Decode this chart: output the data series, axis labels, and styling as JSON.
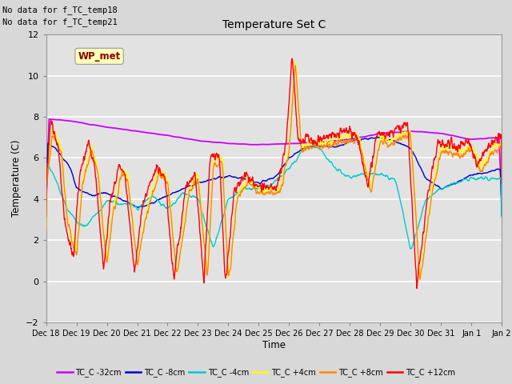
{
  "title": "Temperature Set C",
  "xlabel": "Time",
  "ylabel": "Temperature (C)",
  "ylim": [
    -2,
    12
  ],
  "yticks": [
    -2,
    0,
    2,
    4,
    6,
    8,
    10,
    12
  ],
  "no_data_text": [
    "No data for f_TC_temp18",
    "No data for f_TC_temp21"
  ],
  "wp_met_label": "WP_met",
  "legend_entries": [
    "TC_C -32cm",
    "TC_C -8cm",
    "TC_C -4cm",
    "TC_C +4cm",
    "TC_C +8cm",
    "TC_C +12cm"
  ],
  "line_colors": [
    "#cc00ff",
    "#0000cc",
    "#00cccc",
    "#ffff00",
    "#ff8800",
    "#ff0000"
  ],
  "bg_color": "#dddddd",
  "plot_bg_color": "#e0e0e0",
  "grid_color": "#ffffff",
  "xtick_labels": [
    "Dec 18",
    "Dec 19",
    "Dec 20",
    "Dec 21",
    "Dec 22",
    "Dec 23",
    "Dec 24",
    "Dec 25",
    "Dec 26",
    "Dec 27",
    "Dec 28",
    "Dec 29",
    "Dec 30",
    "Dec 31",
    "Jan 1",
    "Jan 2"
  ]
}
